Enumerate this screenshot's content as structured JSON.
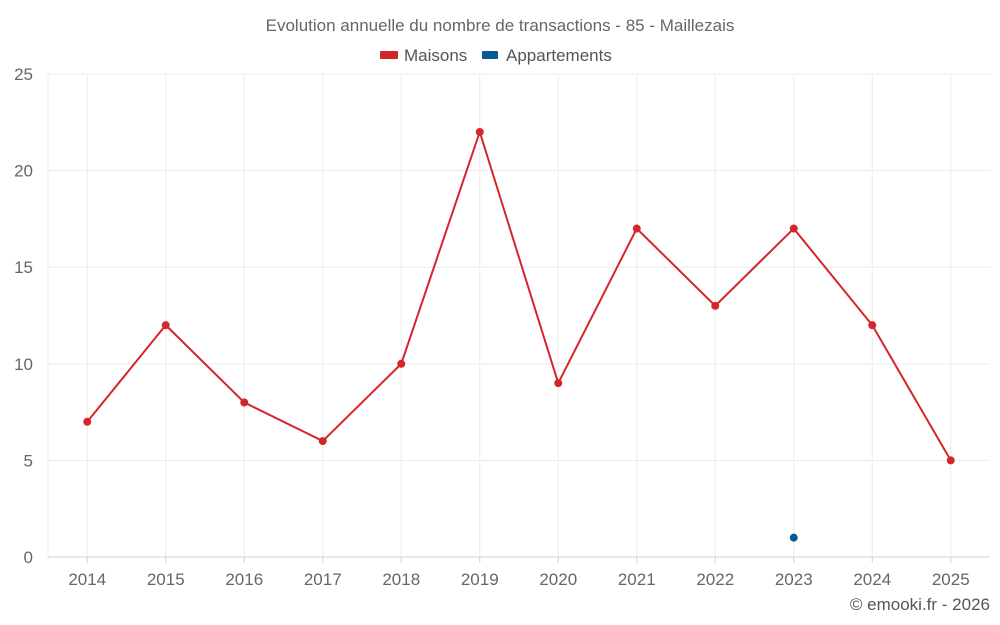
{
  "chart_data": {
    "type": "line",
    "title": "Evolution annuelle du nombre de transactions - 85 - Maillezais",
    "categories": [
      "2014",
      "2015",
      "2016",
      "2017",
      "2018",
      "2019",
      "2020",
      "2021",
      "2022",
      "2023",
      "2024",
      "2025"
    ],
    "series": [
      {
        "name": "Maisons",
        "color": "#d3262a",
        "values": [
          7,
          12,
          8,
          6,
          10,
          22,
          9,
          17,
          13,
          17,
          12,
          5
        ]
      },
      {
        "name": "Appartements",
        "color": "#075a94",
        "values": [
          null,
          null,
          null,
          null,
          null,
          null,
          null,
          null,
          null,
          1,
          null,
          null
        ]
      }
    ],
    "ylim": [
      0,
      25
    ],
    "yticks": [
      "0",
      "5",
      "10",
      "15",
      "20",
      "25"
    ],
    "grid": true,
    "legend": "top-center"
  },
  "footer": {
    "credit": "© emooki.fr - 2026"
  }
}
